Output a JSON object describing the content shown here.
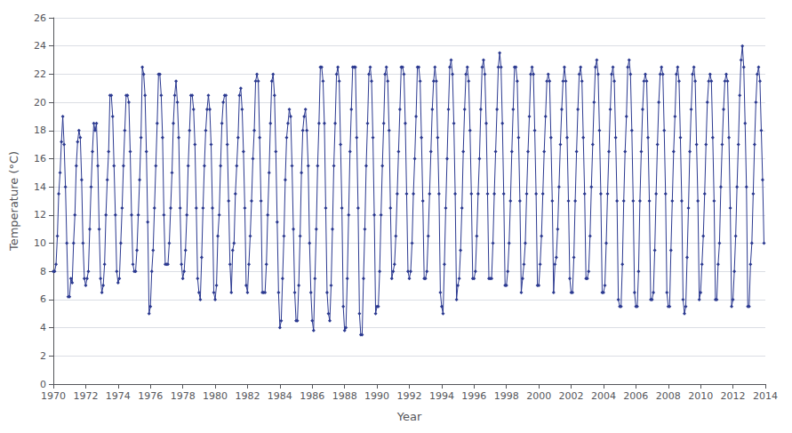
{
  "chart_data": {
    "type": "line",
    "xlabel": "Year",
    "ylabel": "Temperature (°C)",
    "color": "#2B3990",
    "marker": "diamond",
    "grid": true,
    "xlim": [
      1970,
      2014
    ],
    "ylim": [
      0,
      26
    ],
    "xticks": [
      1970,
      1972,
      1974,
      1976,
      1978,
      1980,
      1982,
      1984,
      1986,
      1988,
      1990,
      1992,
      1994,
      1996,
      1998,
      2000,
      2002,
      2004,
      2006,
      2008,
      2010,
      2012,
      2014
    ],
    "yticks": [
      0,
      2,
      4,
      6,
      8,
      10,
      12,
      14,
      16,
      18,
      20,
      22,
      24,
      26
    ],
    "x": [
      1970,
      1970.0833333333333,
      1970.1666666666667,
      1970.25,
      1970.3333333333333,
      1970.4166666666667,
      1970.5,
      1970.5833333333333,
      1970.6666666666667,
      1970.75,
      1970.8333333333333,
      1970.9166666666667,
      1971,
      1971.0833333333333,
      1971.1666666666667,
      1971.25,
      1971.3333333333333,
      1971.4166666666667,
      1971.5,
      1971.5833333333333,
      1971.6666666666667,
      1971.75,
      1971.8333333333333,
      1971.9166666666667,
      1972,
      1972.0833333333333,
      1972.1666666666667,
      1972.25,
      1972.3333333333333,
      1972.4166666666667,
      1972.5,
      1972.5833333333333,
      1972.6666666666667,
      1972.75,
      1972.8333333333333,
      1972.9166666666667,
      1973,
      1973.0833333333333,
      1973.1666666666667,
      1973.25,
      1973.3333333333333,
      1973.4166666666667,
      1973.5,
      1973.5833333333333,
      1973.6666666666667,
      1973.75,
      1973.8333333333333,
      1973.9166666666667,
      1974,
      1974.0833333333333,
      1974.1666666666667,
      1974.25,
      1974.3333333333333,
      1974.4166666666667,
      1974.5,
      1974.5833333333333,
      1974.6666666666667,
      1974.75,
      1974.8333333333333,
      1974.9166666666667,
      1975,
      1975.0833333333333,
      1975.1666666666667,
      1975.25,
      1975.3333333333333,
      1975.4166666666667,
      1975.5,
      1975.5833333333333,
      1975.6666666666667,
      1975.75,
      1975.8333333333333,
      1975.9166666666667,
      1976,
      1976.0833333333333,
      1976.1666666666667,
      1976.25,
      1976.3333333333333,
      1976.4166666666667,
      1976.5,
      1976.5833333333333,
      1976.6666666666667,
      1976.75,
      1976.8333333333333,
      1976.9166666666667,
      1977,
      1977.0833333333333,
      1977.1666666666667,
      1977.25,
      1977.3333333333333,
      1977.4166666666667,
      1977.5,
      1977.5833333333333,
      1977.6666666666667,
      1977.75,
      1977.8333333333333,
      1977.9166666666667,
      1978,
      1978.0833333333333,
      1978.1666666666667,
      1978.25,
      1978.3333333333333,
      1978.4166666666667,
      1978.5,
      1978.5833333333333,
      1978.6666666666667,
      1978.75,
      1978.8333333333333,
      1978.9166666666667,
      1979,
      1979.0833333333333,
      1979.1666666666667,
      1979.25,
      1979.3333333333333,
      1979.4166666666667,
      1979.5,
      1979.5833333333333,
      1979.6666666666667,
      1979.75,
      1979.8333333333333,
      1979.9166666666667,
      1980,
      1980.0833333333333,
      1980.1666666666667,
      1980.25,
      1980.3333333333333,
      1980.4166666666667,
      1980.5,
      1980.5833333333333,
      1980.6666666666667,
      1980.75,
      1980.8333333333333,
      1980.9166666666667,
      1981,
      1981.0833333333333,
      1981.1666666666667,
      1981.25,
      1981.3333333333333,
      1981.4166666666667,
      1981.5,
      1981.5833333333333,
      1981.6666666666667,
      1981.75,
      1981.8333333333333,
      1981.9166666666667,
      1982,
      1982.0833333333333,
      1982.1666666666667,
      1982.25,
      1982.3333333333333,
      1982.4166666666667,
      1982.5,
      1982.5833333333333,
      1982.6666666666667,
      1982.75,
      1982.8333333333333,
      1982.9166666666667,
      1983,
      1983.0833333333333,
      1983.1666666666667,
      1983.25,
      1983.3333333333333,
      1983.4166666666667,
      1983.5,
      1983.5833333333333,
      1983.6666666666667,
      1983.75,
      1983.8333333333333,
      1983.9166666666667,
      1984,
      1984.0833333333333,
      1984.1666666666667,
      1984.25,
      1984.3333333333333,
      1984.4166666666667,
      1984.5,
      1984.5833333333333,
      1984.6666666666667,
      1984.75,
      1984.8333333333333,
      1984.9166666666667,
      1985,
      1985.0833333333333,
      1985.1666666666667,
      1985.25,
      1985.3333333333333,
      1985.4166666666667,
      1985.5,
      1985.5833333333333,
      1985.6666666666667,
      1985.75,
      1985.8333333333333,
      1985.9166666666667,
      1986,
      1986.0833333333333,
      1986.1666666666667,
      1986.25,
      1986.3333333333333,
      1986.4166666666667,
      1986.5,
      1986.5833333333333,
      1986.6666666666667,
      1986.75,
      1986.8333333333333,
      1986.9166666666667,
      1987,
      1987.0833333333333,
      1987.1666666666667,
      1987.25,
      1987.3333333333333,
      1987.4166666666667,
      1987.5,
      1987.5833333333333,
      1987.6666666666667,
      1987.75,
      1987.8333333333333,
      1987.9166666666667,
      1988,
      1988.0833333333333,
      1988.1666666666667,
      1988.25,
      1988.3333333333333,
      1988.4166666666667,
      1988.5,
      1988.5833333333333,
      1988.6666666666667,
      1988.75,
      1988.8333333333333,
      1988.9166666666667,
      1989,
      1989.0833333333333,
      1989.1666666666667,
      1989.25,
      1989.3333333333333,
      1989.4166666666667,
      1989.5,
      1989.5833333333333,
      1989.6666666666667,
      1989.75,
      1989.8333333333333,
      1989.9166666666667,
      1990,
      1990.0833333333333,
      1990.1666666666667,
      1990.25,
      1990.3333333333333,
      1990.4166666666667,
      1990.5,
      1990.5833333333333,
      1990.6666666666667,
      1990.75,
      1990.8333333333333,
      1990.9166666666667,
      1991,
      1991.0833333333333,
      1991.1666666666667,
      1991.25,
      1991.3333333333333,
      1991.4166666666667,
      1991.5,
      1991.5833333333333,
      1991.6666666666667,
      1991.75,
      1991.8333333333333,
      1991.9166666666667,
      1992,
      1992.0833333333333,
      1992.1666666666667,
      1992.25,
      1992.3333333333333,
      1992.4166666666667,
      1992.5,
      1992.5833333333333,
      1992.6666666666667,
      1992.75,
      1992.8333333333333,
      1992.9166666666667,
      1993,
      1993.0833333333333,
      1993.1666666666667,
      1993.25,
      1993.3333333333333,
      1993.4166666666667,
      1993.5,
      1993.5833333333333,
      1993.6666666666667,
      1993.75,
      1993.8333333333333,
      1993.9166666666667,
      1994,
      1994.0833333333333,
      1994.1666666666667,
      1994.25,
      1994.3333333333333,
      1994.4166666666667,
      1994.5,
      1994.5833333333333,
      1994.6666666666667,
      1994.75,
      1994.8333333333333,
      1994.9166666666667,
      1995,
      1995.0833333333333,
      1995.1666666666667,
      1995.25,
      1995.3333333333333,
      1995.4166666666667,
      1995.5,
      1995.5833333333333,
      1995.6666666666667,
      1995.75,
      1995.8333333333333,
      1995.9166666666667,
      1996,
      1996.0833333333333,
      1996.1666666666667,
      1996.25,
      1996.3333333333333,
      1996.4166666666667,
      1996.5,
      1996.5833333333333,
      1996.6666666666667,
      1996.75,
      1996.8333333333333,
      1996.9166666666667,
      1997,
      1997.0833333333333,
      1997.1666666666667,
      1997.25,
      1997.3333333333333,
      1997.4166666666667,
      1997.5,
      1997.5833333333333,
      1997.6666666666667,
      1997.75,
      1997.8333333333333,
      1997.9166666666667,
      1998,
      1998.0833333333333,
      1998.1666666666667,
      1998.25,
      1998.3333333333333,
      1998.4166666666667,
      1998.5,
      1998.5833333333333,
      1998.6666666666667,
      1998.75,
      1998.8333333333333,
      1998.9166666666667,
      1999,
      1999.0833333333333,
      1999.1666666666667,
      1999.25,
      1999.3333333333333,
      1999.4166666666667,
      1999.5,
      1999.5833333333333,
      1999.6666666666667,
      1999.75,
      1999.8333333333333,
      1999.9166666666667,
      2000,
      2000.0833333333333,
      2000.1666666666667,
      2000.25,
      2000.3333333333333,
      2000.4166666666667,
      2000.5,
      2000.5833333333333,
      2000.6666666666667,
      2000.75,
      2000.8333333333333,
      2000.9166666666667,
      2001,
      2001.0833333333333,
      2001.1666666666667,
      2001.25,
      2001.3333333333333,
      2001.4166666666667,
      2001.5,
      2001.5833333333333,
      2001.6666666666667,
      2001.75,
      2001.8333333333333,
      2001.9166666666667,
      2002,
      2002.0833333333333,
      2002.1666666666667,
      2002.25,
      2002.3333333333333,
      2002.4166666666667,
      2002.5,
      2002.5833333333333,
      2002.6666666666667,
      2002.75,
      2002.8333333333333,
      2002.9166666666667,
      2003,
      2003.0833333333333,
      2003.1666666666667,
      2003.25,
      2003.3333333333333,
      2003.4166666666667,
      2003.5,
      2003.5833333333333,
      2003.6666666666667,
      2003.75,
      2003.8333333333333,
      2003.9166666666667,
      2004,
      2004.0833333333333,
      2004.1666666666667,
      2004.25,
      2004.3333333333333,
      2004.4166666666667,
      2004.5,
      2004.5833333333333,
      2004.6666666666667,
      2004.75,
      2004.8333333333333,
      2004.9166666666667,
      2005,
      2005.0833333333333,
      2005.1666666666667,
      2005.25,
      2005.3333333333333,
      2005.4166666666667,
      2005.5,
      2005.5833333333333,
      2005.6666666666667,
      2005.75,
      2005.8333333333333,
      2005.9166666666667,
      2006,
      2006.0833333333333,
      2006.1666666666667,
      2006.25,
      2006.3333333333333,
      2006.4166666666667,
      2006.5,
      2006.5833333333333,
      2006.6666666666667,
      2006.75,
      2006.8333333333333,
      2006.9166666666667,
      2007,
      2007.0833333333333,
      2007.1666666666667,
      2007.25,
      2007.3333333333333,
      2007.4166666666667,
      2007.5,
      2007.5833333333333,
      2007.6666666666667,
      2007.75,
      2007.8333333333333,
      2007.9166666666667,
      2008,
      2008.0833333333333,
      2008.1666666666667,
      2008.25,
      2008.3333333333333,
      2008.4166666666667,
      2008.5,
      2008.5833333333333,
      2008.6666666666667,
      2008.75,
      2008.8333333333333,
      2008.9166666666667,
      2009,
      2009.0833333333333,
      2009.1666666666667,
      2009.25,
      2009.3333333333333,
      2009.4166666666667,
      2009.5,
      2009.5833333333333,
      2009.6666666666667,
      2009.75,
      2009.8333333333333,
      2009.9166666666667,
      2010,
      2010.0833333333333,
      2010.1666666666667,
      2010.25,
      2010.3333333333333,
      2010.4166666666667,
      2010.5,
      2010.5833333333333,
      2010.6666666666667,
      2010.75,
      2010.8333333333333,
      2010.9166666666667,
      2011,
      2011.0833333333333,
      2011.1666666666667,
      2011.25,
      2011.3333333333333,
      2011.4166666666667,
      2011.5,
      2011.5833333333333,
      2011.6666666666667,
      2011.75,
      2011.8333333333333,
      2011.9166666666667,
      2012,
      2012.0833333333333,
      2012.1666666666667,
      2012.25,
      2012.3333333333333,
      2012.4166666666667,
      2012.5,
      2012.5833333333333,
      2012.6666666666667,
      2012.75,
      2012.8333333333333,
      2012.9166666666667,
      2013,
      2013.0833333333333,
      2013.1666666666667,
      2013.25,
      2013.3333333333333,
      2013.4166666666667,
      2013.5,
      2013.5833333333333,
      2013.6666666666667,
      2013.75,
      2013.8333333333333,
      2013.9166666666667
    ],
    "values": [
      8.0,
      8.0,
      8.5,
      10.5,
      13.5,
      15.0,
      17.2,
      19.0,
      17.0,
      14.0,
      10.0,
      6.2,
      6.2,
      7.5,
      7.2,
      10.0,
      12.0,
      15.5,
      17.2,
      18.0,
      17.5,
      14.5,
      10.0,
      7.5,
      7.0,
      7.5,
      8.0,
      11.0,
      14.0,
      16.5,
      18.5,
      18.0,
      18.5,
      15.5,
      11.0,
      7.5,
      6.5,
      7.0,
      8.5,
      12.0,
      14.5,
      16.5,
      20.5,
      20.5,
      19.0,
      15.5,
      12.0,
      8.0,
      7.2,
      7.5,
      10.0,
      12.5,
      15.5,
      18.0,
      20.5,
      20.5,
      20.0,
      16.5,
      12.0,
      8.5,
      8.0,
      8.0,
      9.5,
      12.0,
      14.5,
      17.5,
      22.5,
      22.0,
      20.5,
      16.5,
      11.5,
      5.0,
      5.5,
      8.0,
      9.5,
      12.5,
      15.5,
      18.5,
      22.0,
      22.0,
      20.5,
      17.5,
      12.0,
      8.5,
      8.5,
      8.5,
      10.0,
      12.5,
      15.0,
      18.5,
      20.5,
      21.5,
      20.0,
      17.5,
      12.5,
      8.5,
      7.5,
      8.0,
      9.5,
      12.0,
      15.5,
      18.0,
      20.5,
      20.5,
      19.5,
      17.0,
      12.5,
      7.5,
      6.5,
      6.0,
      9.0,
      12.5,
      15.5,
      18.0,
      19.5,
      20.5,
      19.5,
      17.0,
      12.5,
      6.5,
      6.0,
      7.0,
      10.5,
      12.0,
      15.5,
      18.5,
      20.0,
      20.5,
      20.5,
      17.0,
      13.0,
      8.5,
      6.5,
      9.5,
      10.0,
      13.5,
      15.5,
      17.5,
      20.5,
      21.0,
      19.5,
      16.5,
      12.5,
      7.0,
      6.5,
      8.5,
      10.5,
      13.0,
      16.0,
      18.0,
      21.5,
      22.0,
      21.5,
      17.5,
      13.0,
      6.5,
      6.5,
      6.5,
      8.5,
      12.0,
      15.0,
      18.5,
      21.5,
      22.0,
      20.5,
      16.5,
      11.5,
      6.5,
      4.0,
      4.5,
      7.5,
      10.5,
      14.5,
      17.5,
      18.5,
      19.5,
      19.0,
      15.5,
      11.0,
      6.5,
      4.5,
      4.5,
      7.0,
      10.5,
      15.0,
      18.0,
      19.0,
      19.5,
      18.0,
      15.5,
      10.0,
      6.5,
      4.5,
      3.8,
      7.5,
      11.0,
      15.5,
      18.5,
      22.5,
      22.5,
      21.5,
      18.5,
      12.5,
      6.5,
      5.0,
      4.5,
      7.0,
      11.0,
      15.5,
      18.5,
      22.0,
      22.5,
      21.5,
      17.0,
      12.5,
      5.5,
      3.8,
      4.0,
      7.5,
      12.0,
      16.5,
      19.5,
      22.5,
      22.5,
      22.5,
      17.5,
      12.5,
      5.0,
      3.5,
      3.5,
      7.5,
      11.0,
      15.5,
      18.5,
      22.0,
      22.5,
      21.5,
      17.5,
      12.0,
      5.0,
      5.5,
      5.5,
      8.0,
      12.0,
      15.5,
      18.5,
      22.0,
      22.5,
      21.5,
      18.0,
      12.5,
      7.5,
      8.0,
      8.5,
      10.5,
      13.5,
      16.5,
      19.5,
      22.5,
      22.5,
      22.0,
      18.5,
      13.5,
      8.0,
      7.5,
      8.0,
      10.0,
      13.5,
      16.0,
      19.0,
      22.5,
      22.5,
      21.5,
      17.5,
      13.0,
      7.5,
      7.5,
      8.0,
      10.5,
      13.5,
      16.5,
      19.5,
      21.5,
      22.5,
      21.5,
      17.5,
      13.5,
      6.5,
      5.5,
      5.0,
      8.5,
      12.5,
      16.0,
      19.5,
      22.5,
      23.0,
      22.0,
      18.5,
      13.5,
      6.0,
      7.0,
      7.5,
      9.5,
      12.5,
      16.5,
      19.5,
      22.0,
      22.5,
      21.5,
      18.0,
      13.5,
      7.5,
      7.5,
      8.0,
      10.5,
      13.5,
      16.0,
      19.5,
      22.5,
      23.0,
      22.0,
      18.5,
      13.5,
      7.5,
      7.5,
      7.5,
      10.0,
      13.5,
      16.5,
      19.5,
      22.5,
      23.5,
      22.5,
      18.5,
      13.5,
      7.0,
      7.0,
      8.0,
      10.0,
      13.0,
      16.5,
      19.5,
      22.5,
      22.5,
      21.5,
      17.5,
      13.0,
      6.5,
      7.5,
      8.5,
      10.0,
      13.5,
      16.5,
      19.0,
      22.0,
      22.5,
      22.0,
      18.0,
      13.5,
      7.0,
      7.0,
      8.5,
      10.5,
      13.5,
      16.5,
      19.0,
      21.5,
      22.0,
      21.5,
      17.5,
      13.0,
      6.5,
      8.5,
      9.0,
      11.0,
      14.0,
      17.0,
      19.5,
      21.5,
      22.5,
      21.5,
      17.5,
      13.0,
      7.5,
      6.5,
      6.5,
      9.0,
      13.0,
      16.5,
      19.5,
      22.0,
      22.5,
      21.5,
      17.5,
      13.5,
      7.5,
      7.5,
      8.0,
      10.5,
      14.0,
      17.0,
      20.0,
      22.5,
      23.0,
      22.0,
      18.0,
      13.5,
      6.5,
      6.5,
      7.0,
      10.0,
      13.5,
      16.5,
      19.5,
      22.0,
      22.5,
      21.5,
      17.5,
      13.0,
      6.0,
      5.5,
      5.5,
      8.5,
      13.0,
      16.5,
      19.0,
      22.5,
      23.0,
      22.0,
      18.0,
      13.0,
      6.5,
      5.5,
      5.5,
      8.0,
      13.0,
      16.5,
      19.5,
      21.5,
      22.0,
      21.5,
      17.5,
      13.0,
      6.0,
      6.0,
      6.5,
      9.5,
      13.5,
      17.0,
      20.0,
      22.0,
      22.5,
      22.0,
      18.0,
      13.5,
      6.5,
      5.5,
      5.5,
      9.5,
      13.0,
      16.5,
      19.0,
      22.0,
      22.5,
      21.5,
      17.5,
      13.0,
      6.0,
      5.0,
      5.5,
      9.0,
      12.5,
      16.5,
      19.5,
      22.0,
      22.5,
      21.5,
      17.0,
      13.0,
      6.0,
      6.5,
      8.5,
      10.5,
      13.5,
      17.0,
      20.0,
      21.5,
      22.0,
      21.5,
      17.5,
      13.0,
      6.0,
      6.0,
      8.5,
      10.0,
      14.0,
      17.0,
      19.5,
      21.5,
      22.0,
      21.5,
      17.5,
      12.5,
      5.5,
      6.0,
      8.0,
      10.5,
      14.0,
      17.0,
      20.5,
      23.0,
      24.0,
      22.5,
      18.5,
      14.0,
      5.5,
      5.5,
      8.5,
      10.0,
      13.5,
      17.0,
      20.0,
      22.0,
      22.5,
      21.5,
      18.0,
      14.5,
      10.0
    ]
  }
}
